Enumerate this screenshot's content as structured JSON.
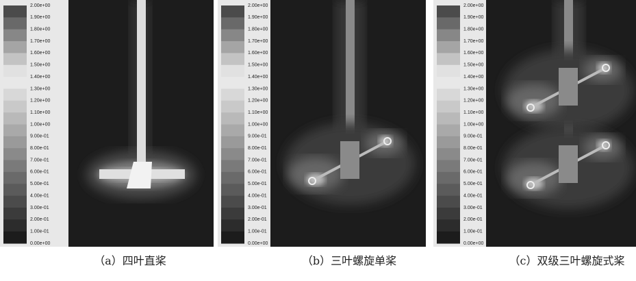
{
  "panels": [
    {
      "colorbar_labels": [
        "2.00e+00",
        "1.90e+00",
        "1.80e+00",
        "1.70e+00",
        "1.60e+00",
        "1.50e+00",
        "1.40e+00",
        "1.30e+00",
        "1.20e+00",
        "1.10e+00",
        "1.00e+00",
        "9.00e-01",
        "8.00e-01",
        "7.00e-01",
        "6.00e-01",
        "5.00e-01",
        "4.00e-01",
        "3.00e-01",
        "2.00e-01",
        "1.00e-01",
        "0.00e+00"
      ],
      "caption": "（a）四叶直桨"
    },
    {
      "colorbar_labels": [
        "2.00e+00",
        "1.90e+00",
        "1.80e+00",
        "1.70e+00",
        "1.60e+00",
        "1.50e+00",
        "1.40e+00",
        "1.30e+00",
        "1.20e+00",
        "1.10e+00",
        "1.00e+00",
        "9.00e-01",
        "8.00e-01",
        "7.00e-01",
        "6.00e-01",
        "5.00e-01",
        "4.00e-01",
        "3.00e-01",
        "2.00e-01",
        "1.00e-01",
        "0.00e+00"
      ],
      "caption": "（b）三叶螺旋单桨"
    },
    {
      "colorbar_labels": [
        "2.00e+00",
        "1.90e+00",
        "1.80e+00",
        "1.70e+00",
        "1.60e+00",
        "1.50e+00",
        "1.40e+00",
        "1.30e+00",
        "1.20e+00",
        "1.10e+00",
        "1.00e+00",
        "9.00e-01",
        "8.00e-01",
        "7.00e-01",
        "6.00e-01",
        "5.00e-01",
        "4.00e-01",
        "3.00e-01",
        "2.00e-01",
        "1.00e-01",
        "0.00e+00"
      ],
      "caption": "（c）双级三叶螺旋式桨"
    }
  ]
}
